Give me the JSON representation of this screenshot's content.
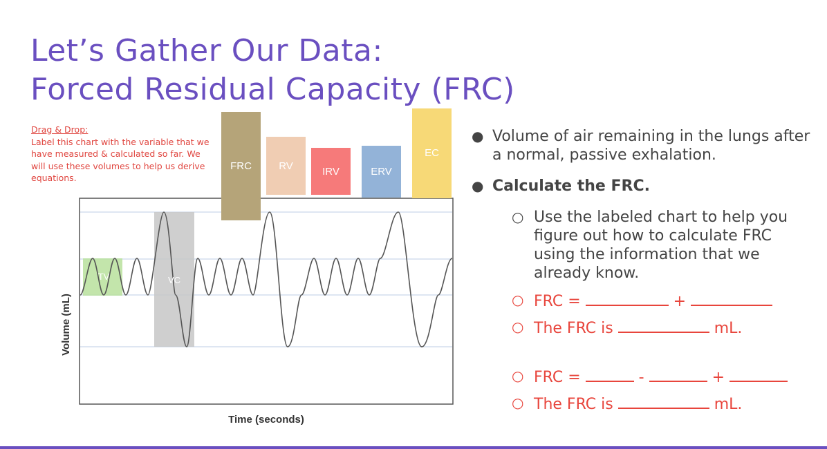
{
  "slide": {
    "title_line1": "Let’s Gather Our Data:",
    "title_line2": "Forced Residual Capacity (FRC)",
    "accent_color": "#6a4fc0"
  },
  "instructions": {
    "heading": "Drag & Drop:",
    "body": "Label this chart with the variable that we have measured & calculated so far. We will use these volumes to help us derive equations."
  },
  "chips": [
    {
      "label": "FRC",
      "color": "#b5a479"
    },
    {
      "label": "RV",
      "color": "#f0cdb3"
    },
    {
      "label": "IRV",
      "color": "#f67a7a"
    },
    {
      "label": "ERV",
      "color": "#93b3d8"
    },
    {
      "label": "EC",
      "color": "#f7d977"
    }
  ],
  "chart": {
    "xlabel": "Time (seconds)",
    "ylabel": "Volume (mL)",
    "tv_label": "TV",
    "vc_label": "VC",
    "tv_color": "#b8e19c",
    "vc_color": "#c7c7c7"
  },
  "bullets": {
    "definition": "Volume of air remaining in the lungs after a normal, passive exhalation.",
    "calculate": "Calculate the FRC.",
    "hint": "Use the labeled chart to help you figure out how to calculate FRC using the information that we already know.",
    "eq1_prefix": "FRC =",
    "eq1_op": "+",
    "result1_prefix": "The FRC is",
    "result1_suffix": "mL.",
    "eq2_prefix": "FRC =",
    "eq2_op1": "-",
    "eq2_op2": "+",
    "result2_prefix": "The FRC is",
    "result2_suffix": "mL."
  }
}
